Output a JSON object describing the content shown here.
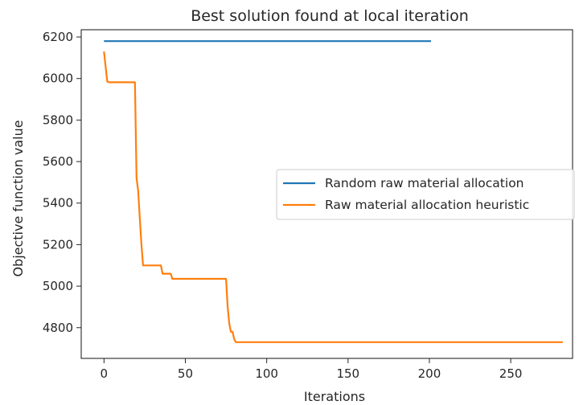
{
  "chart_data": {
    "type": "line",
    "title": "Best solution found at local iteration",
    "xlabel": "Iterations",
    "ylabel": "Objective function value",
    "xlim": [
      -14,
      288
    ],
    "ylim": [
      4652,
      6235
    ],
    "xticks": [
      0,
      50,
      100,
      150,
      200,
      250
    ],
    "yticks": [
      4800,
      5000,
      5200,
      5400,
      5600,
      5800,
      6000,
      6200
    ],
    "grid": false,
    "legend": {
      "placement": "center-right"
    },
    "series": [
      {
        "name": "Random raw material allocation",
        "color": "#1f77b4",
        "x": [
          0,
          201
        ],
        "y": [
          6180,
          6180
        ]
      },
      {
        "name": "Raw material allocation heuristic",
        "color": "#ff7f0e",
        "x": [
          0,
          2,
          3,
          19,
          20,
          21,
          22,
          23,
          24,
          25,
          35,
          36,
          41,
          42,
          75,
          76,
          77,
          78,
          79,
          80,
          81,
          282
        ],
        "y": [
          6130,
          5985,
          5982,
          5982,
          5520,
          5460,
          5330,
          5200,
          5100,
          5100,
          5100,
          5060,
          5060,
          5035,
          5035,
          4900,
          4820,
          4780,
          4780,
          4745,
          4730,
          4730
        ]
      }
    ]
  }
}
